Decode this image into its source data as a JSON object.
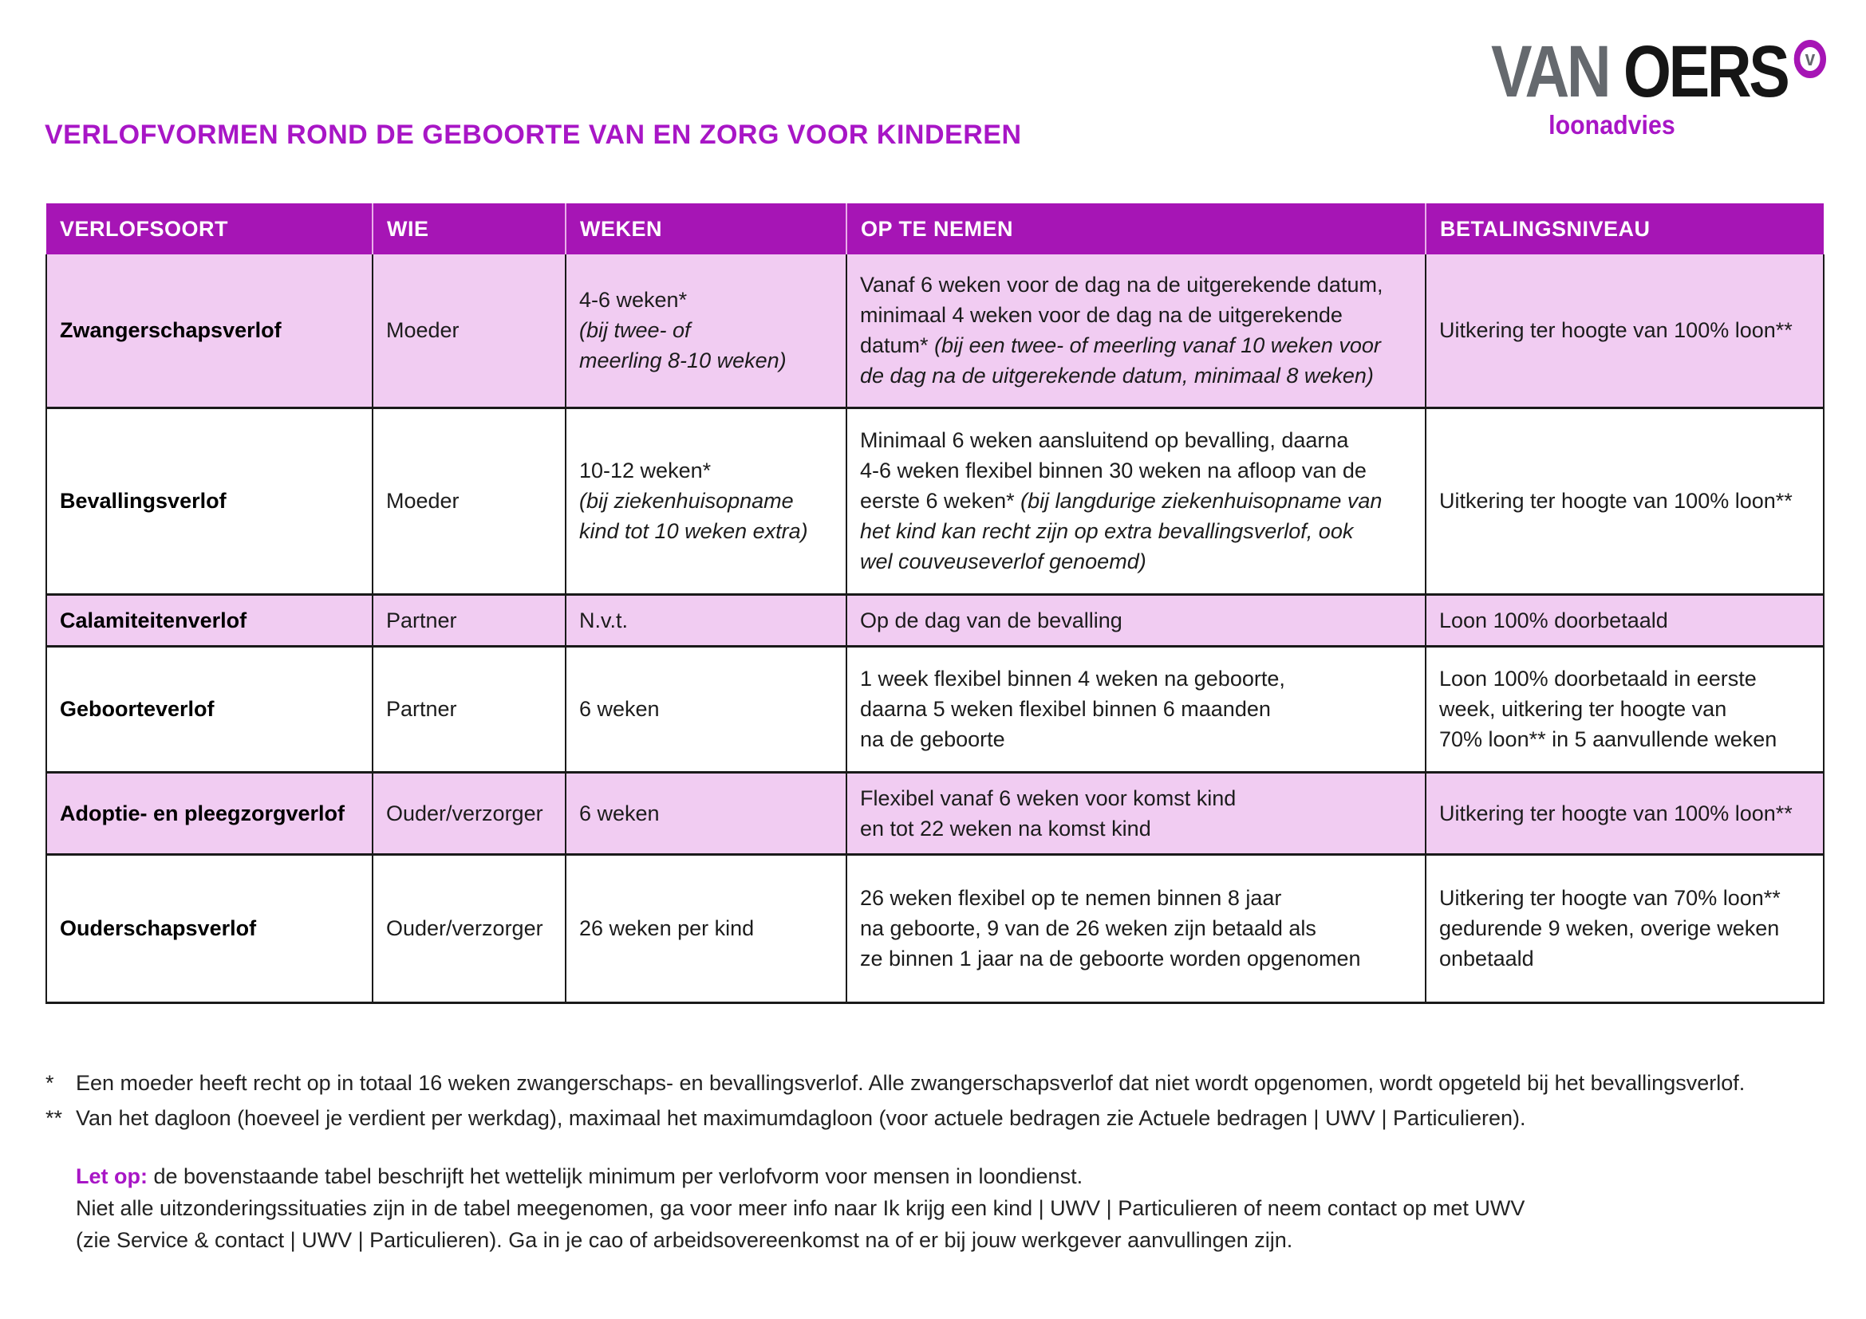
{
  "logo": {
    "part1": "VAN",
    "part2": "OERS",
    "badge": "v",
    "subtitle": "loonadvies"
  },
  "title": "VERLOFVORMEN ROND DE GEBOORTE VAN EN ZORG VOOR KINDEREN",
  "colors": {
    "header_bg": "#a615b5",
    "row_pink": "#f1ccf2",
    "accent_magenta": "#a816c6",
    "logo_gray": "#65696e",
    "logo_black": "#161616",
    "table_border": "#1a1a1a"
  },
  "table": {
    "columns": [
      {
        "key": "verlofsoort",
        "label": "VERLOFSOORT"
      },
      {
        "key": "wie",
        "label": "WIE"
      },
      {
        "key": "weken",
        "label": "WEKEN"
      },
      {
        "key": "op_te_nemen",
        "label": "OP TE NEMEN"
      },
      {
        "key": "betalingsniveau",
        "label": "BETALINGSNIVEAU"
      }
    ],
    "rows": [
      {
        "verlofsoort": [
          {
            "text": "Zwangerschapsverlof"
          }
        ],
        "wie": [
          {
            "text": "Moeder"
          }
        ],
        "weken": [
          {
            "text": "4-6 weken*\n"
          },
          {
            "text": "(bij twee- of\nmeerling 8-10 weken)",
            "italic": true
          }
        ],
        "op_te_nemen": [
          {
            "text": "Vanaf 6 weken voor de dag na de uitgerekende datum,\nminimaal 4 weken voor de dag na de uitgerekende\ndatum* "
          },
          {
            "text": "(bij een twee- of meerling vanaf 10 weken voor\nde dag na de uitgerekende datum, minimaal 8 weken)",
            "italic": true
          }
        ],
        "betalingsniveau": [
          {
            "text": "Uitkering ter hoogte van 100% loon**"
          }
        ]
      },
      {
        "verlofsoort": [
          {
            "text": "Bevallingsverlof"
          }
        ],
        "wie": [
          {
            "text": "Moeder"
          }
        ],
        "weken": [
          {
            "text": "10-12 weken*\n"
          },
          {
            "text": "(bij ziekenhuisopname\nkind tot 10 weken extra)",
            "italic": true
          }
        ],
        "op_te_nemen": [
          {
            "text": "Minimaal 6 weken aansluitend op bevalling, daarna\n4-6 weken flexibel binnen 30 weken na afloop van de\neerste 6 weken* "
          },
          {
            "text": "(bij langdurige ziekenhuisopname van\nhet kind kan recht zijn op extra bevallingsverlof, ook\nwel couveuseverlof genoemd)",
            "italic": true
          }
        ],
        "betalingsniveau": [
          {
            "text": "Uitkering ter hoogte van 100% loon**"
          }
        ]
      },
      {
        "verlofsoort": [
          {
            "text": "Calamiteitenverlof"
          }
        ],
        "wie": [
          {
            "text": "Partner"
          }
        ],
        "weken": [
          {
            "text": "N.v.t."
          }
        ],
        "op_te_nemen": [
          {
            "text": "Op de dag van de bevalling"
          }
        ],
        "betalingsniveau": [
          {
            "text": "Loon 100% doorbetaald"
          }
        ]
      },
      {
        "verlofsoort": [
          {
            "text": "Geboorteverlof"
          }
        ],
        "wie": [
          {
            "text": "Partner"
          }
        ],
        "weken": [
          {
            "text": "6 weken"
          }
        ],
        "op_te_nemen": [
          {
            "text": "1 week flexibel binnen 4 weken na geboorte,\ndaarna 5 weken flexibel binnen 6 maanden\nna de geboorte"
          }
        ],
        "betalingsniveau": [
          {
            "text": "Loon 100% doorbetaald in eerste\nweek, uitkering ter hoogte van\n70% loon** in 5 aanvullende weken"
          }
        ]
      },
      {
        "verlofsoort": [
          {
            "text": "Adoptie- en pleegzorgverlof"
          }
        ],
        "wie": [
          {
            "text": "Ouder/verzorger"
          }
        ],
        "weken": [
          {
            "text": "6 weken"
          }
        ],
        "op_te_nemen": [
          {
            "text": "Flexibel vanaf 6 weken voor komst kind\nen tot 22 weken na komst kind"
          }
        ],
        "betalingsniveau": [
          {
            "text": "Uitkering ter hoogte van 100% loon**"
          }
        ]
      },
      {
        "verlofsoort": [
          {
            "text": "Ouderschapsverlof"
          }
        ],
        "wie": [
          {
            "text": "Ouder/verzorger"
          }
        ],
        "weken": [
          {
            "text": "26 weken per kind"
          }
        ],
        "op_te_nemen": [
          {
            "text": "26 weken flexibel op te nemen binnen 8 jaar\nna geboorte, 9 van de 26 weken zijn betaald als\nze binnen 1 jaar na de geboorte worden opgenomen"
          }
        ],
        "betalingsniveau": [
          {
            "text": "Uitkering ter hoogte van 70% loon**\ngedurende 9 weken, overige weken\nonbetaald"
          }
        ]
      }
    ]
  },
  "footnotes": [
    {
      "marker": "*",
      "text": "Een moeder heeft recht op in totaal 16 weken zwangerschaps- en bevallingsverlof. Alle zwangerschapsverlof dat niet wordt opgenomen, wordt opgeteld bij het bevallingsverlof."
    },
    {
      "marker": "**",
      "text": "Van het dagloon (hoeveel je verdient per werkdag), maximaal het maximumdagloon (voor actuele bedragen zie Actuele bedragen | UWV | Particulieren)."
    }
  ],
  "note": {
    "label": "Let op:",
    "line1": " de bovenstaande tabel beschrijft het wettelijk minimum per verlofvorm voor mensen in loondienst.",
    "line2": "Niet alle uitzonderingssituaties zijn in de tabel meegenomen, ga voor meer info naar Ik krijg een kind | UWV | Particulieren of neem contact op met UWV",
    "line3": "(zie Service & contact | UWV | Particulieren). Ga in je cao of arbeidsovereenkomst na of er bij jouw werkgever aanvullingen zijn."
  }
}
